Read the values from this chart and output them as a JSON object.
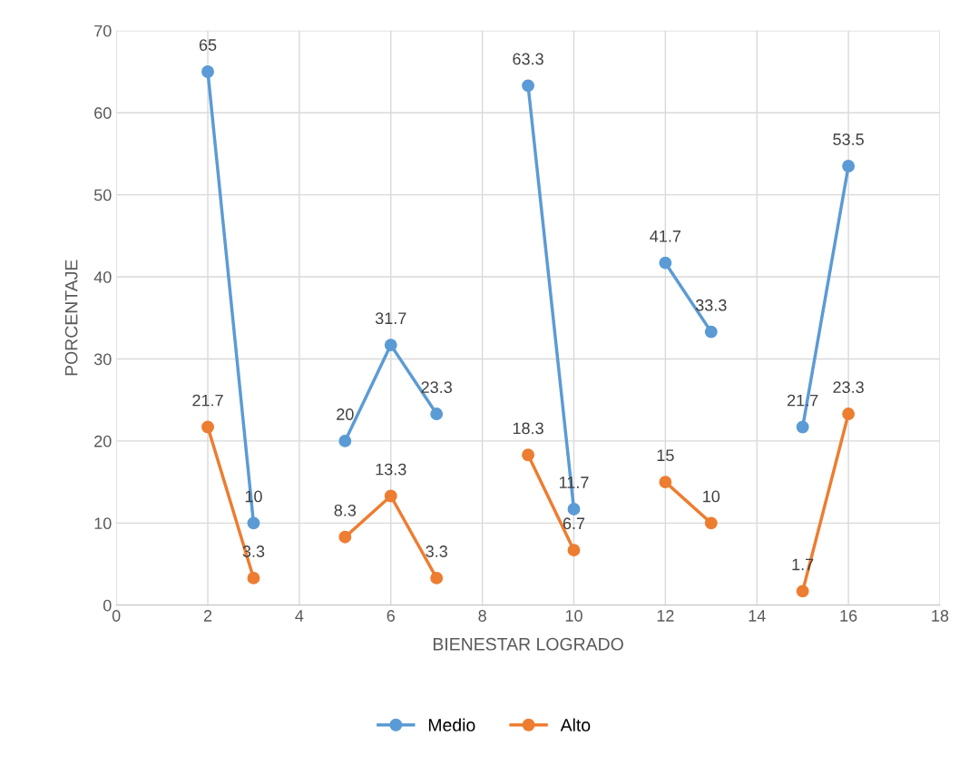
{
  "chart_data": {
    "type": "line",
    "xlabel": "BIENESTAR LOGRADO",
    "ylabel": "PORCENTAJE",
    "x": [
      2,
      3,
      4,
      5,
      6,
      7,
      8,
      9,
      10,
      11,
      12,
      13,
      14,
      15,
      16
    ],
    "series": [
      {
        "name": "Medio",
        "color": "#5b9bd5",
        "values": [
          65,
          10,
          null,
          20,
          31.7,
          23.3,
          null,
          63.3,
          11.7,
          null,
          41.7,
          33.3,
          null,
          21.7,
          53.5
        ]
      },
      {
        "name": "Alto",
        "color": "#ed7d31",
        "values": [
          21.7,
          3.3,
          null,
          8.3,
          13.3,
          3.3,
          null,
          18.3,
          6.7,
          null,
          15,
          10,
          null,
          1.7,
          23.3
        ]
      }
    ],
    "xlim": [
      0,
      18
    ],
    "xticks": [
      0,
      2,
      4,
      6,
      8,
      10,
      12,
      14,
      16,
      18
    ],
    "ylim": [
      0,
      70
    ],
    "yticks": [
      0,
      10,
      20,
      30,
      40,
      50,
      60,
      70
    ],
    "grid": true,
    "legend": "bottom",
    "marker": "circle",
    "line_style": "solid",
    "data_labels": true
  }
}
